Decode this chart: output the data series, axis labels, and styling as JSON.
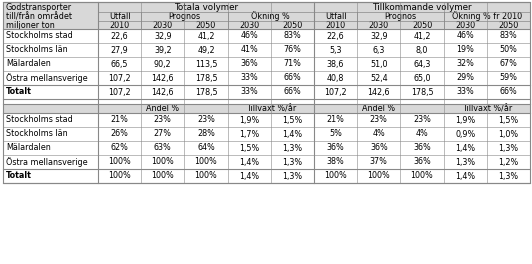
{
  "rows_top": [
    [
      "Stockholms stad",
      "22,6",
      "32,9",
      "41,2",
      "46%",
      "83%",
      "22,6",
      "32,9",
      "41,2",
      "46%",
      "83%"
    ],
    [
      "Stockholms län",
      "27,9",
      "39,2",
      "49,2",
      "41%",
      "76%",
      "5,3",
      "6,3",
      "8,0",
      "19%",
      "50%"
    ],
    [
      "Mälardalen",
      "66,5",
      "90,2",
      "113,5",
      "36%",
      "71%",
      "38,6",
      "51,0",
      "64,3",
      "32%",
      "67%"
    ],
    [
      "Östra mellansverige",
      "107,2",
      "142,6",
      "178,5",
      "33%",
      "66%",
      "40,8",
      "52,4",
      "65,0",
      "29%",
      "59%"
    ]
  ],
  "totalt_row_top": [
    "Totalt",
    "107,2",
    "142,6",
    "178,5",
    "33%",
    "66%",
    "107,2",
    "142,6",
    "178,5",
    "33%",
    "66%"
  ],
  "rows_bottom": [
    [
      "Stockholms stad",
      "21%",
      "23%",
      "23%",
      "1,9%",
      "1,5%",
      "21%",
      "23%",
      "23%",
      "1,9%",
      "1,5%"
    ],
    [
      "Stockholms län",
      "26%",
      "27%",
      "28%",
      "1,7%",
      "1,4%",
      "5%",
      "4%",
      "4%",
      "0,9%",
      "1,0%"
    ],
    [
      "Mälardalen",
      "62%",
      "63%",
      "64%",
      "1,5%",
      "1,3%",
      "36%",
      "36%",
      "36%",
      "1,4%",
      "1,3%"
    ],
    [
      "Östra mellansverige",
      "100%",
      "100%",
      "100%",
      "1,4%",
      "1,3%",
      "38%",
      "37%",
      "36%",
      "1,3%",
      "1,2%"
    ]
  ],
  "totalt_row_bottom": [
    "Totalt",
    "100%",
    "100%",
    "100%",
    "1,4%",
    "1,3%",
    "100%",
    "100%",
    "100%",
    "1,4%",
    "1,3%"
  ],
  "bg_header": "#d8d8d8",
  "bg_white": "#ffffff",
  "border_color": "#888888",
  "fontsize": 5.8
}
